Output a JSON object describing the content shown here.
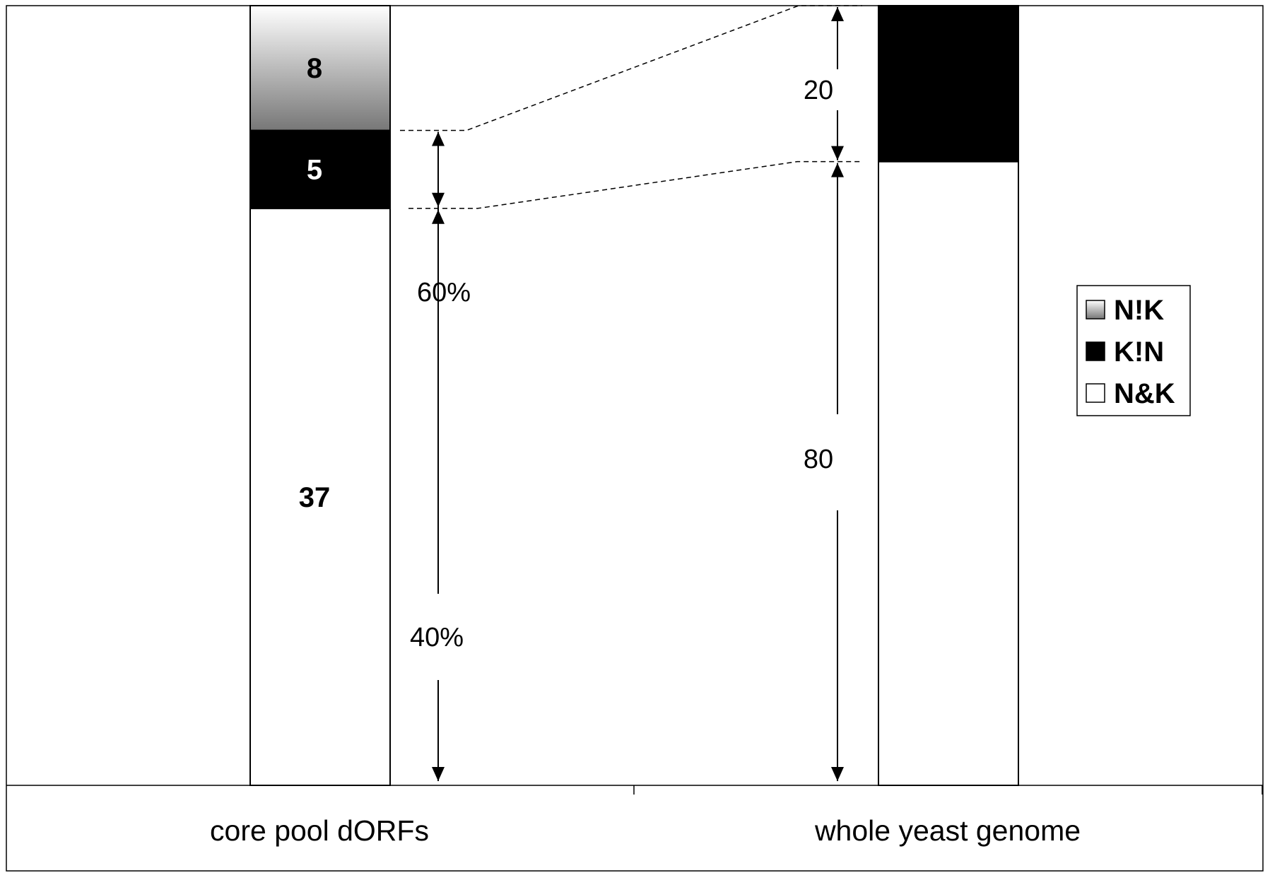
{
  "chart_data": {
    "type": "bar",
    "stacked": true,
    "categories": [
      "core pool dORFs",
      "whole yeast genome"
    ],
    "series": [
      {
        "name": "N&K",
        "color": "#ffffff",
        "values": [
          37,
          80
        ]
      },
      {
        "name": "K!N",
        "color": "#000000",
        "values": [
          5,
          20
        ]
      },
      {
        "name": "N!K",
        "color": "#c0c0c0",
        "values": [
          8,
          0
        ]
      }
    ],
    "segment_labels": [
      [
        "37",
        "5",
        "8"
      ],
      [
        "",
        "",
        ""
      ]
    ],
    "percent_scale": [
      [
        74,
        10,
        16
      ],
      [
        80,
        20,
        0
      ]
    ],
    "annotations": {
      "core_upper": "60%",
      "core_lower": "40%",
      "genome_upper": "20",
      "genome_lower": "80"
    },
    "legend_position": "right",
    "ylim": [
      0,
      100
    ]
  }
}
